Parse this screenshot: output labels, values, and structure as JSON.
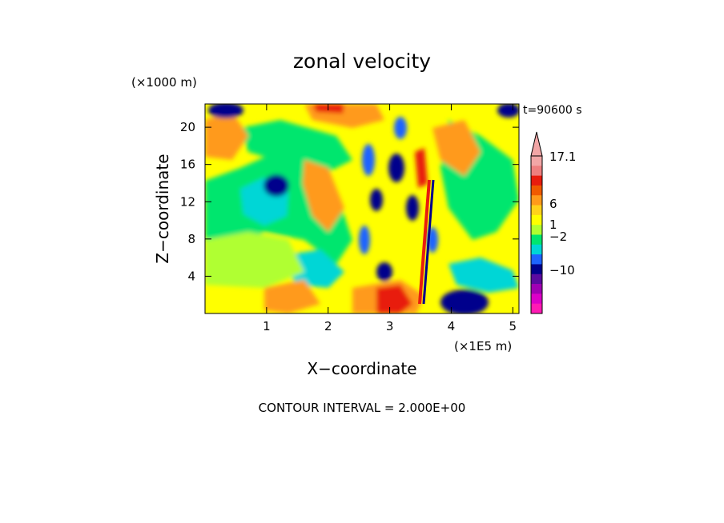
{
  "chart_data": {
    "type": "heatmap",
    "title": "zonal velocity",
    "xlabel": "X−coordinate",
    "ylabel": "Z−coordinate",
    "x_unit": "(×1E5 m)",
    "y_unit": "(×1000 m)",
    "time_label": "t=90600 s",
    "footer": "CONTOUR INTERVAL = 2.000E+00",
    "xlim": [
      0,
      5.1
    ],
    "ylim": [
      0,
      22.5
    ],
    "x_ticks": [
      "1",
      "2",
      "3",
      "4",
      "5"
    ],
    "y_ticks": [
      "4",
      "8",
      "12",
      "16",
      "20"
    ],
    "colorbar": {
      "labels": [
        "17.1",
        "6",
        "1",
        "−2",
        "−10"
      ],
      "colors": [
        "#f2a6a6",
        "#ee7f7f",
        "#e81c0e",
        "#f05a00",
        "#ff9a1a",
        "#ffd21a",
        "#ffff00",
        "#b0ff30",
        "#00e66e",
        "#00d6d6",
        "#1e64ff",
        "#00008c",
        "#5a0aa0",
        "#a000b4",
        "#dc00c8",
        "#ff1ab4"
      ]
    }
  }
}
